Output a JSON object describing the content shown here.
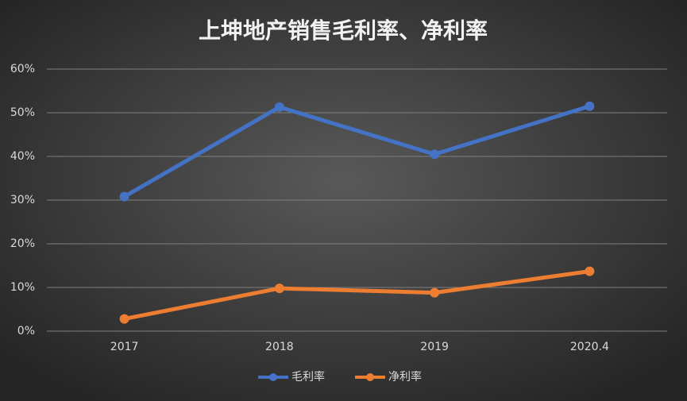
{
  "chart_data": {
    "type": "line",
    "title": "上坤地产销售毛利率、净利率",
    "categories": [
      "2017",
      "2018",
      "2019",
      "2020.4"
    ],
    "series": [
      {
        "name": "毛利率",
        "color": "#4472c4",
        "values": [
          30.8,
          51.3,
          40.5,
          51.5
        ]
      },
      {
        "name": "净利率",
        "color": "#ed7d31",
        "values": [
          2.8,
          9.8,
          8.8,
          13.7
        ]
      }
    ],
    "ylim": [
      0,
      60
    ],
    "yticks": [
      {
        "value": 0,
        "label": "0%"
      },
      {
        "value": 10,
        "label": "10%"
      },
      {
        "value": 20,
        "label": "20%"
      },
      {
        "value": 30,
        "label": "30%"
      },
      {
        "value": 40,
        "label": "40%"
      },
      {
        "value": 50,
        "label": "50%"
      },
      {
        "value": 60,
        "label": "60%"
      }
    ],
    "grid": true,
    "legend": "bottom"
  }
}
